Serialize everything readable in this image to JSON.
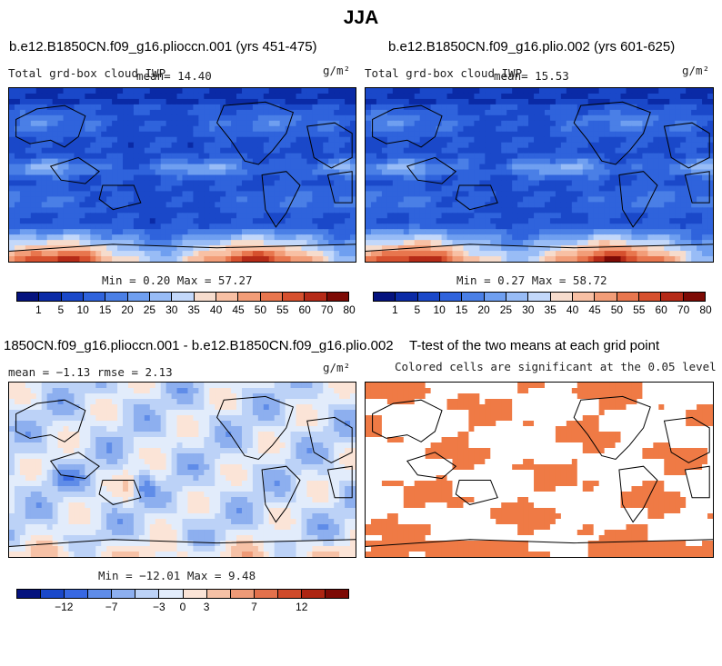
{
  "chart_data": [
    {
      "type": "heatmap",
      "title": "b.e12.B1850CN.f09_g16.plioccn.001 (yrs 451-475)",
      "variable": "Total grd-box cloud IWP",
      "units": "g/m²",
      "mean_label": "mean=  14.40",
      "mean": 14.4,
      "min": 0.2,
      "max": 57.27,
      "minmax_label": "Min =   0.20 Max =   57.27",
      "colorbar_ticks": [
        "1",
        "5",
        "10",
        "15",
        "20",
        "25",
        "30",
        "35",
        "40",
        "45",
        "50",
        "55",
        "60",
        "70",
        "80"
      ]
    },
    {
      "type": "heatmap",
      "title": "b.e12.B1850CN.f09_g16.plio.002 (yrs 601-625)",
      "variable": "Total grd-box cloud IWP",
      "units": "g/m²",
      "mean_label": "mean=  15.53",
      "mean": 15.53,
      "min": 0.27,
      "max": 58.72,
      "minmax_label": "Min =   0.27 Max =   58.72",
      "colorbar_ticks": [
        "1",
        "5",
        "10",
        "15",
        "20",
        "25",
        "30",
        "35",
        "40",
        "45",
        "50",
        "55",
        "60",
        "70",
        "80"
      ]
    },
    {
      "type": "heatmap",
      "title": "1850CN.f09_g16.plioccn.001 - b.e12.B1850CN.f09_g16.plio.002",
      "units": "g/m²",
      "stats_label": "mean =  −1.13      rmse =    2.13",
      "mean": -1.13,
      "rmse": 2.13,
      "min": -12.01,
      "max": 9.48,
      "minmax_label": "Min = −12.01 Max =    9.48",
      "colorbar_ticks": [
        "−12",
        "−7",
        "−3",
        "0",
        "3",
        "7",
        "12"
      ]
    },
    {
      "type": "heatmap",
      "title": "T-test of the two means at each grid point",
      "subtitle": "Colored cells are significant at the 0.05 level"
    }
  ],
  "page": {
    "title": "JJA"
  },
  "colors": {
    "abs_scale": [
      "#04127e",
      "#0a2aa6",
      "#1a48c9",
      "#2f63dc",
      "#4a7fe6",
      "#6f9ff0",
      "#98bcf6",
      "#c3d8fa",
      "#f6dccd",
      "#f8c0a4",
      "#f29d78",
      "#e8764e",
      "#d6502e",
      "#b52a17",
      "#7d0a05"
    ],
    "diff_scale": [
      "#04127e",
      "#1a48c9",
      "#3868e2",
      "#5f8ce8",
      "#8dafef",
      "#bcd2f7",
      "#e2ecfb",
      "#fbe4d7",
      "#f6c1a6",
      "#ee9a77",
      "#e3714c",
      "#cf4a2a",
      "#ad2512",
      "#7d0a05"
    ],
    "significant": "#ef7a45"
  }
}
